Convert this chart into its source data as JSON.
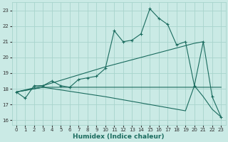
{
  "xlabel": "Humidex (Indice chaleur)",
  "xlim": [
    -0.5,
    23.5
  ],
  "ylim": [
    15.7,
    23.5
  ],
  "yticks": [
    16,
    17,
    18,
    19,
    20,
    21,
    22,
    23
  ],
  "xticks": [
    0,
    1,
    2,
    3,
    4,
    5,
    6,
    7,
    8,
    9,
    10,
    11,
    12,
    13,
    14,
    15,
    16,
    17,
    18,
    19,
    20,
    21,
    22,
    23
  ],
  "background_color": "#caeae5",
  "grid_color": "#a8d4cc",
  "line_color": "#1a6b5e",
  "line1_x": [
    0,
    1,
    2,
    3,
    4,
    5,
    6,
    7,
    8,
    9,
    10,
    11,
    12,
    13,
    14,
    15,
    16,
    17,
    18,
    19,
    20,
    21,
    22,
    23
  ],
  "line1_y": [
    17.8,
    17.4,
    18.2,
    18.2,
    18.5,
    18.2,
    18.1,
    18.6,
    18.7,
    18.8,
    19.3,
    21.7,
    21.0,
    21.1,
    21.5,
    23.1,
    22.5,
    22.1,
    20.8,
    21.0,
    18.2,
    21.0,
    17.5,
    16.2
  ],
  "line2_x": [
    0,
    3,
    10,
    20,
    21
  ],
  "line2_y": [
    17.8,
    18.2,
    19.4,
    20.9,
    21.0
  ],
  "line3_x": [
    0,
    3,
    10,
    19,
    20,
    21,
    22,
    23
  ],
  "line3_y": [
    17.8,
    18.1,
    17.5,
    16.6,
    18.2,
    17.5,
    16.7,
    16.2
  ],
  "line4_x": [
    0,
    3,
    9,
    19,
    20,
    23
  ],
  "line4_y": [
    17.8,
    18.1,
    18.1,
    18.1,
    18.1,
    18.1
  ]
}
